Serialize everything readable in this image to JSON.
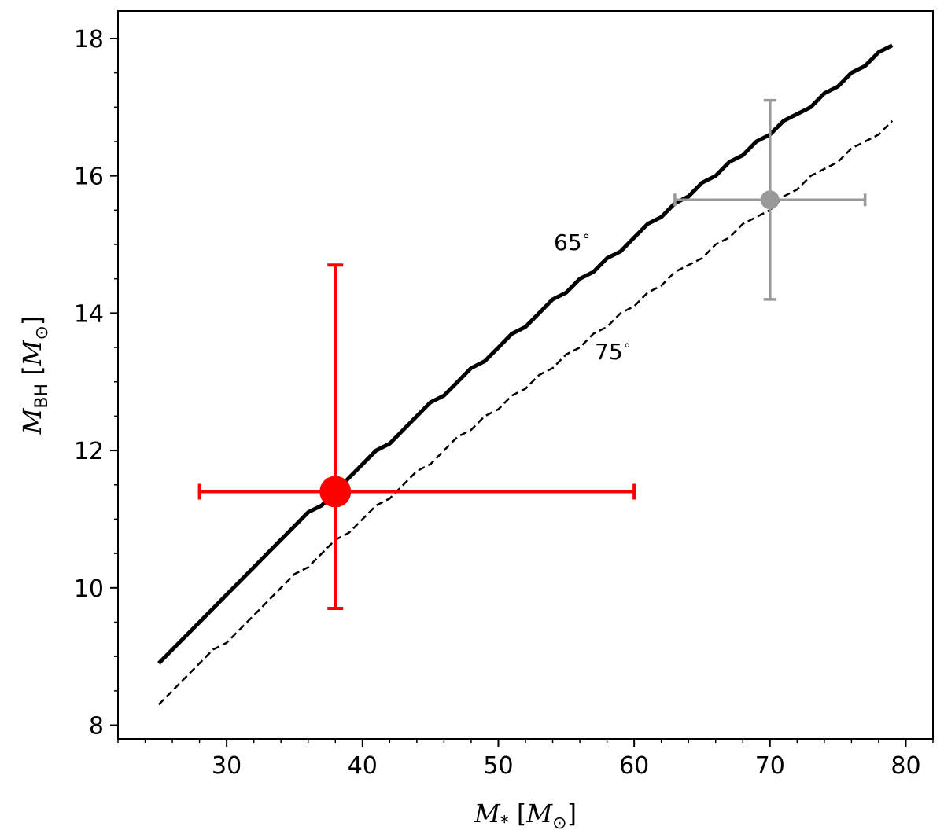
{
  "chart_data": {
    "type": "line",
    "xlim": [
      22,
      82
    ],
    "ylim": [
      7.8,
      18.4
    ],
    "x_major_ticks": [
      30,
      40,
      50,
      60,
      70,
      80
    ],
    "x_minor_step": 2,
    "y_major_ticks": [
      8,
      10,
      12,
      14,
      16,
      18
    ],
    "y_minor_step": 0.5,
    "xlabel": {
      "main": "M",
      "sub": "*",
      "unit_open": " [",
      "unit": "M",
      "unit_sub": "⊙",
      "unit_close": "]"
    },
    "ylabel": {
      "main": "M",
      "sub": "BH",
      "unit_open": " [",
      "unit": "M",
      "unit_sub": "⊙",
      "unit_close": "]"
    },
    "grid": false,
    "series": [
      {
        "color": "#000000",
        "style": "solid",
        "x": [
          25,
          26,
          27,
          28,
          29,
          30,
          31,
          32,
          33,
          34,
          35,
          36,
          37,
          38,
          39,
          40,
          41,
          42,
          43,
          44,
          45,
          46,
          47,
          48,
          49,
          50,
          51,
          52,
          53,
          54,
          55,
          56,
          57,
          58,
          59,
          60,
          61,
          62,
          63,
          64,
          65,
          66,
          67,
          68,
          69,
          70,
          71,
          72,
          73,
          74,
          75,
          76,
          77,
          78,
          79
        ],
        "y": [
          8.9,
          9.1,
          9.3,
          9.5,
          9.7,
          9.9,
          10.1,
          10.3,
          10.5,
          10.7,
          10.9,
          11.1,
          11.2,
          11.4,
          11.6,
          11.8,
          12.0,
          12.1,
          12.3,
          12.5,
          12.7,
          12.8,
          13.0,
          13.2,
          13.3,
          13.5,
          13.7,
          13.8,
          14.0,
          14.2,
          14.3,
          14.5,
          14.6,
          14.8,
          14.9,
          15.1,
          15.3,
          15.4,
          15.6,
          15.7,
          15.9,
          16.0,
          16.2,
          16.3,
          16.5,
          16.6,
          16.8,
          16.9,
          17.0,
          17.2,
          17.3,
          17.5,
          17.6,
          17.8,
          17.9
        ]
      },
      {
        "color": "#000000",
        "style": "dashed",
        "x": [
          25,
          26,
          27,
          28,
          29,
          30,
          31,
          32,
          33,
          34,
          35,
          36,
          37,
          38,
          39,
          40,
          41,
          42,
          43,
          44,
          45,
          46,
          47,
          48,
          49,
          50,
          51,
          52,
          53,
          54,
          55,
          56,
          57,
          58,
          59,
          60,
          61,
          62,
          63,
          64,
          65,
          66,
          67,
          68,
          69,
          70,
          71,
          72,
          73,
          74,
          75,
          76,
          77,
          78,
          79
        ],
        "y": [
          8.3,
          8.5,
          8.7,
          8.9,
          9.1,
          9.2,
          9.4,
          9.6,
          9.8,
          10.0,
          10.2,
          10.3,
          10.5,
          10.7,
          10.8,
          11.0,
          11.2,
          11.3,
          11.5,
          11.7,
          11.8,
          12.0,
          12.2,
          12.3,
          12.5,
          12.6,
          12.8,
          12.9,
          13.1,
          13.2,
          13.4,
          13.5,
          13.7,
          13.8,
          14.0,
          14.1,
          14.3,
          14.4,
          14.6,
          14.7,
          14.8,
          15.0,
          15.1,
          15.3,
          15.4,
          15.5,
          15.7,
          15.8,
          16.0,
          16.1,
          16.2,
          16.4,
          16.5,
          16.6,
          16.8
        ]
      }
    ],
    "points": [
      {
        "x": 38,
        "y": 11.4,
        "xerr": [
          28,
          60
        ],
        "yerr": [
          9.7,
          14.7
        ],
        "color": "#ff0000",
        "size": "large"
      },
      {
        "x": 70,
        "y": 15.65,
        "xerr": [
          63,
          77
        ],
        "yerr": [
          14.2,
          17.1
        ],
        "color": "#999999",
        "size": "small"
      }
    ],
    "annotations": [
      {
        "text": "65",
        "sup": "∘",
        "x": 54.1,
        "y": 14.95
      },
      {
        "text": "75",
        "sup": "∘",
        "x": 57.0,
        "y": 14.95
      }
    ]
  }
}
